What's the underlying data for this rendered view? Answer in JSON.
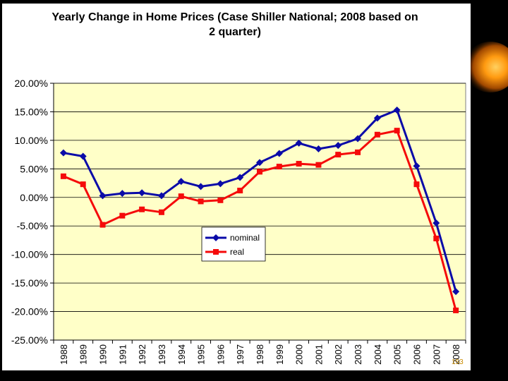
{
  "title_line1": "Yearly Change in Home Prices (Case Shiller National; 2008 based on",
  "title_line2": "2 quarter)",
  "slide_number": "153",
  "colors": {
    "nominal": "#0a0aa8",
    "real": "#f50a0a",
    "plot_bg": "#ffffc8",
    "grid": "#000000",
    "orb": "#f08a00"
  },
  "chart_data": {
    "type": "line",
    "title": "Yearly Change in Home Prices (Case Shiller National; 2008 based on 2 quarter)",
    "xlabel": "",
    "ylabel": "",
    "categories": [
      "1988",
      "1989",
      "1990",
      "1991",
      "1992",
      "1993",
      "1994",
      "1995",
      "1996",
      "1997",
      "1998",
      "1999",
      "2000",
      "2001",
      "2002",
      "2003",
      "2004",
      "2005",
      "2006",
      "2007",
      "2008"
    ],
    "ylim": [
      -25,
      20
    ],
    "y_ticks": [
      20,
      15,
      10,
      5,
      0,
      -5,
      -10,
      -15,
      -20,
      -25
    ],
    "y_tick_labels": [
      "20.00%",
      "15.00%",
      "10.00%",
      "5.00%",
      "0.00%",
      "-5.00%",
      "-10.00%",
      "-15.00%",
      "-20.00%",
      "-25.00%"
    ],
    "grid": true,
    "legend_position": "center",
    "series": [
      {
        "name": "nominal",
        "marker": "diamond",
        "values": [
          7.8,
          7.2,
          0.3,
          0.7,
          0.8,
          0.3,
          2.8,
          1.9,
          2.4,
          3.5,
          6.1,
          7.7,
          9.5,
          8.5,
          9.1,
          10.3,
          13.9,
          15.3,
          5.5,
          -4.5,
          -16.5
        ]
      },
      {
        "name": "real",
        "marker": "square",
        "values": [
          3.7,
          2.3,
          -4.8,
          -3.2,
          -2.1,
          -2.6,
          0.2,
          -0.7,
          -0.5,
          1.2,
          4.5,
          5.4,
          5.9,
          5.7,
          7.5,
          7.9,
          11.0,
          11.7,
          2.3,
          -7.2,
          -19.8
        ]
      }
    ]
  }
}
